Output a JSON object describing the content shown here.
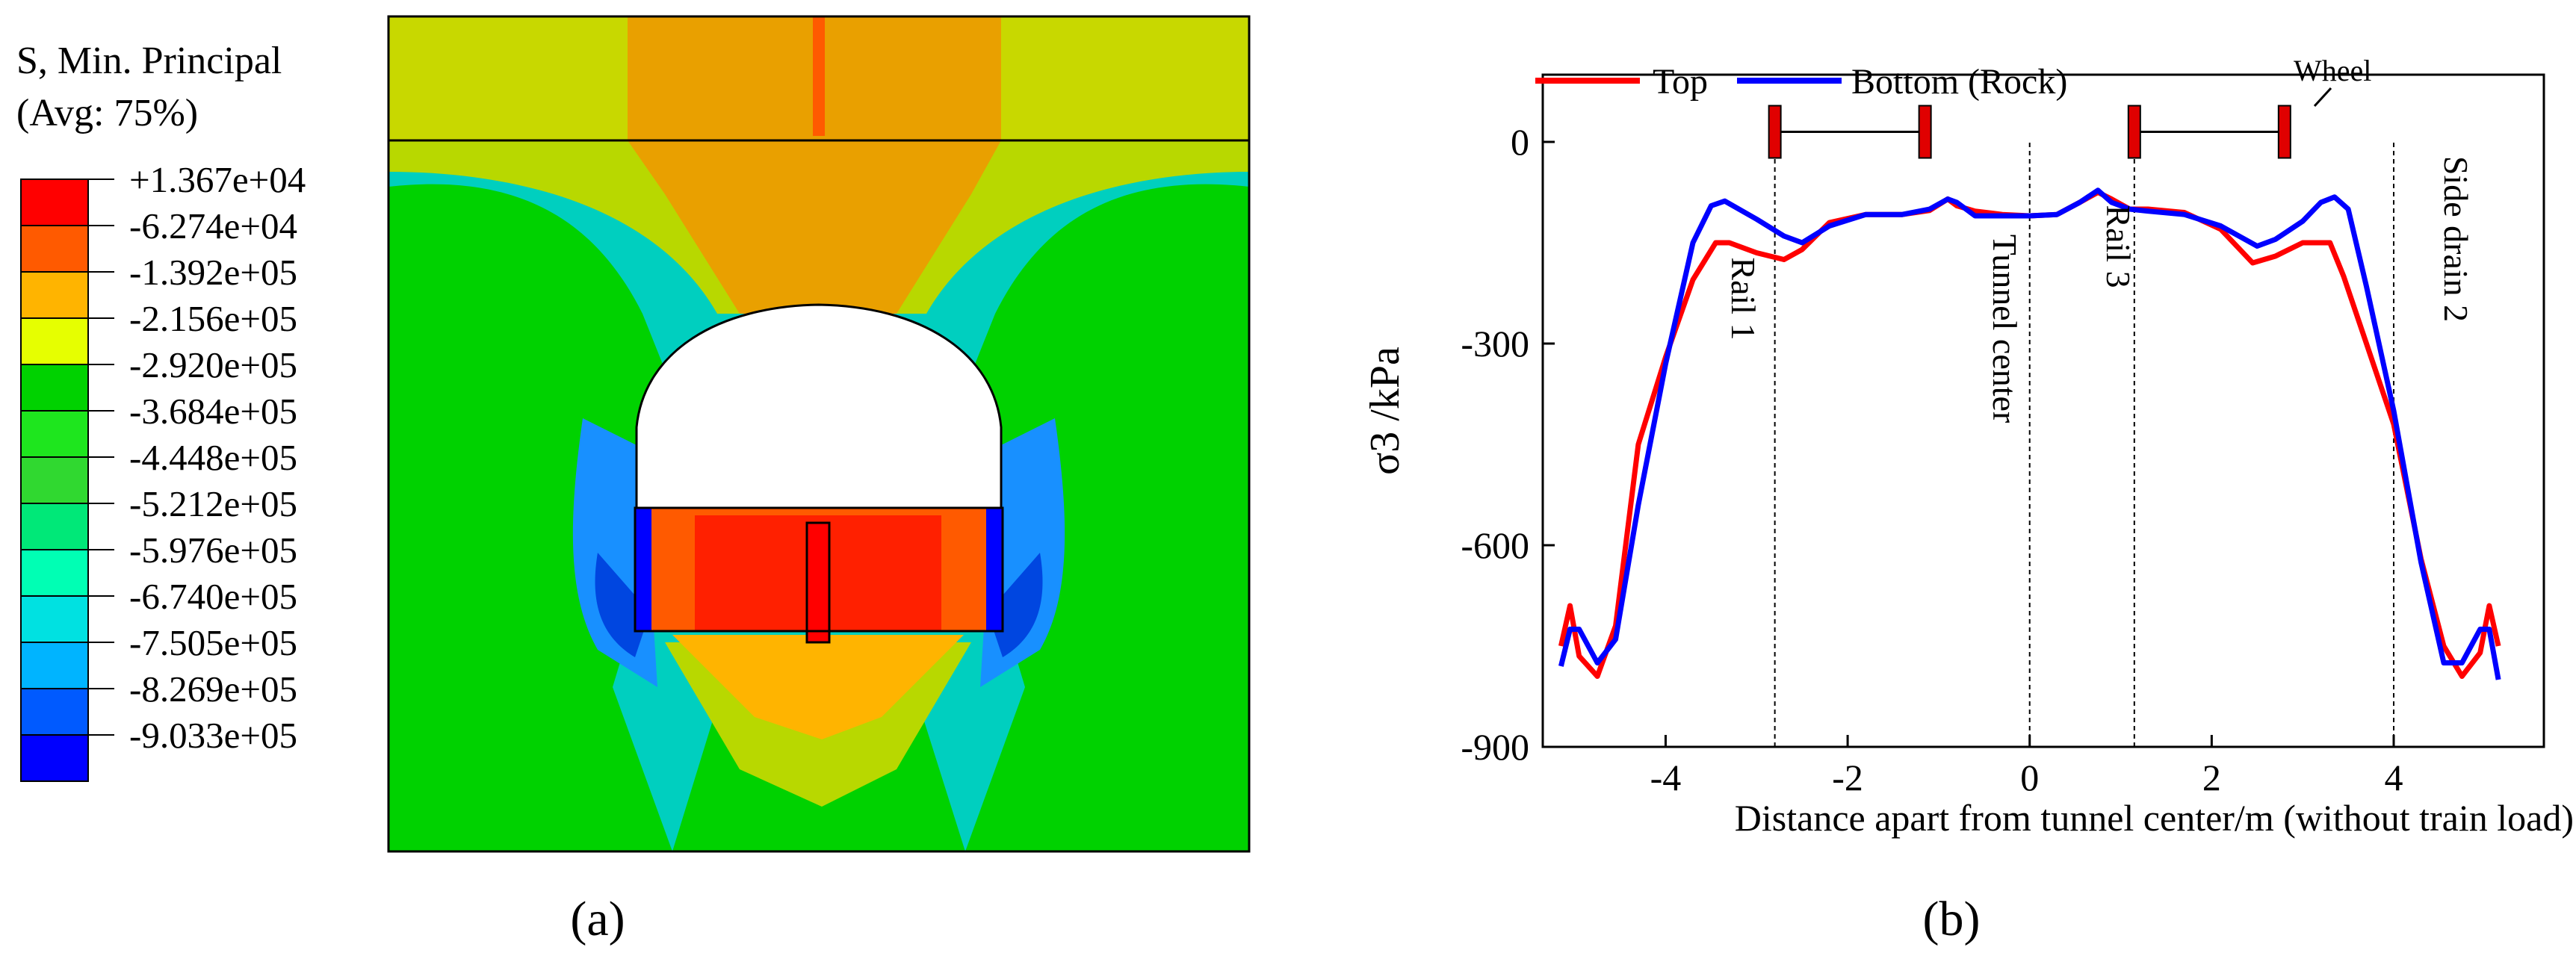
{
  "panel_a": {
    "legend_title_1": "S, Min. Principal",
    "legend_title_2": "(Avg: 75%)",
    "legend_values": [
      "+1.367e+04",
      "-6.274e+04",
      "-1.392e+05",
      "-2.156e+05",
      "-2.920e+05",
      "-3.684e+05",
      "-4.448e+05",
      "-5.212e+05",
      "-5.976e+05",
      "-6.740e+05",
      "-7.505e+05",
      "-8.269e+05",
      "-9.033e+05"
    ],
    "legend_colors": [
      "#ff0000",
      "#ff5a00",
      "#ffb400",
      "#e6ff00",
      "#00d200",
      "#1ee61e",
      "#30d830",
      "#00e878",
      "#00ffb4",
      "#00e1e1",
      "#00b4ff",
      "#005aff",
      "#0000ff"
    ],
    "caption": "(a)"
  },
  "panel_b": {
    "caption": "(b)",
    "annotations": {
      "rail1": "Rail 1",
      "tunnel_center": "Tunnel center",
      "rail3": "Rail 3",
      "side_drain": "Side drain 2",
      "wheel": "Wheel"
    }
  },
  "chart_data": {
    "type": "line",
    "title": "",
    "xlabel": "Distance apart from tunnel center/m (without train load)",
    "ylabel": "σ3 /kPa",
    "xlim": [
      -5.35,
      5.65
    ],
    "ylim": [
      -900,
      100
    ],
    "xticks": [
      -4,
      -2,
      0,
      2,
      4
    ],
    "xtick_labels": [
      "-4",
      "-2",
      "0",
      "2",
      "4"
    ],
    "yticks": [
      0,
      -300,
      -600,
      -900
    ],
    "ytick_labels": [
      "0",
      "-300",
      "-600",
      "-900"
    ],
    "legend_position": "top-left",
    "reference_lines_x": [
      -2.8,
      0,
      1.15,
      4.0
    ],
    "wheel_positions_x": [
      -2.8,
      -1.15,
      1.15,
      2.8
    ],
    "series": [
      {
        "name": "Top",
        "color": "#ff0000",
        "x": [
          -5.15,
          -5.05,
          -4.95,
          -4.75,
          -4.55,
          -4.3,
          -4.0,
          -3.7,
          -3.45,
          -3.3,
          -3.0,
          -2.7,
          -2.5,
          -2.2,
          -1.8,
          -1.4,
          -1.1,
          -0.9,
          -0.8,
          -0.6,
          -0.3,
          0,
          0.3,
          0.55,
          0.75,
          0.9,
          1.1,
          1.3,
          1.7,
          2.1,
          2.45,
          2.7,
          3.0,
          3.3,
          3.45,
          3.7,
          4.0,
          4.3,
          4.55,
          4.75,
          4.95,
          5.05,
          5.15
        ],
        "values": [
          -750,
          -690,
          -765,
          -795,
          -720,
          -450,
          -320,
          -205,
          -150,
          -150,
          -165,
          -175,
          -160,
          -120,
          -108,
          -108,
          -102,
          -85,
          -95,
          -103,
          -108,
          -110,
          -108,
          -90,
          -75,
          -85,
          -100,
          -100,
          -105,
          -130,
          -180,
          -170,
          -150,
          -150,
          -200,
          -300,
          -420,
          -620,
          -750,
          -795,
          -760,
          -690,
          -750
        ]
      },
      {
        "name": "Bottom (Rock)",
        "color": "#0000ff",
        "x": [
          -5.15,
          -5.05,
          -4.95,
          -4.75,
          -4.55,
          -4.3,
          -4.0,
          -3.7,
          -3.5,
          -3.35,
          -3.0,
          -2.7,
          -2.5,
          -2.2,
          -1.8,
          -1.4,
          -1.1,
          -0.9,
          -0.8,
          -0.6,
          -0.3,
          0,
          0.3,
          0.55,
          0.75,
          0.9,
          1.1,
          1.3,
          1.7,
          2.1,
          2.5,
          2.7,
          3.0,
          3.2,
          3.35,
          3.5,
          3.7,
          4.0,
          4.3,
          4.55,
          4.75,
          4.95,
          5.05,
          5.15
        ],
        "values": [
          -780,
          -725,
          -725,
          -775,
          -740,
          -540,
          -330,
          -150,
          -95,
          -88,
          -115,
          -140,
          -150,
          -125,
          -108,
          -108,
          -100,
          -85,
          -90,
          -110,
          -110,
          -110,
          -108,
          -90,
          -72,
          -90,
          -100,
          -103,
          -108,
          -125,
          -155,
          -145,
          -118,
          -90,
          -82,
          -100,
          -215,
          -400,
          -625,
          -775,
          -775,
          -725,
          -725,
          -800
        ]
      }
    ]
  }
}
